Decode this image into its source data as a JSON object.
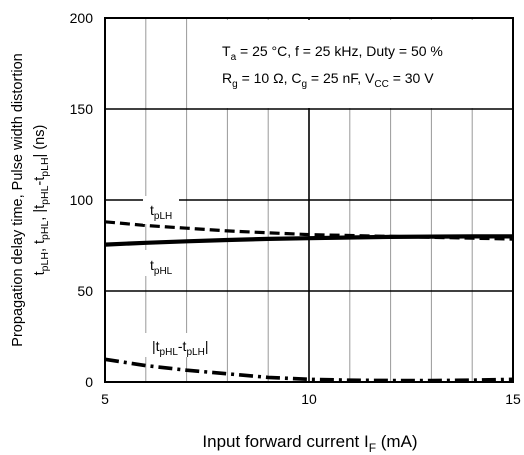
{
  "chart_data": {
    "type": "line",
    "title": "",
    "conditions": {
      "line1": {
        "parts": [
          {
            "t": "T",
            "sub": "a"
          },
          {
            "t": " = 25 °C, f = 25 kHz, Duty = 50 %"
          }
        ]
      },
      "line2": {
        "parts": [
          {
            "t": "R",
            "sub": "g"
          },
          {
            "t": " = 10 Ω, C"
          },
          {
            "t": "",
            "sub": "g"
          },
          {
            "t": " = 25 nF, V"
          },
          {
            "t": "",
            "sub": "CC"
          },
          {
            "t": " = 30 V"
          }
        ]
      }
    },
    "xlabel": {
      "main": "Input forward current  I",
      "sub": "F",
      "unit": "  (mA)"
    },
    "ylabel": {
      "line1": "Propagation delay time, Pulse width distortion",
      "line2_parts": [
        {
          "t": "t",
          "sub": "pLH"
        },
        {
          "t": ", t",
          "sub": "pHL"
        },
        {
          "t": ", |t",
          "sub": "pHL"
        },
        {
          "t": "-t",
          "sub": "pLH"
        },
        {
          "t": "|  (ns)"
        }
      ]
    },
    "xlim": [
      5,
      15
    ],
    "ylim": [
      0,
      200
    ],
    "x_ticks": [
      "5",
      "10",
      "15"
    ],
    "y_ticks": [
      "0",
      "50",
      "100",
      "150",
      "200"
    ],
    "x_minor_grid": [
      6,
      7,
      8,
      9,
      11,
      12,
      13,
      14
    ],
    "x_major_grid": [
      10
    ],
    "y_major_grid": [
      50,
      100,
      150
    ],
    "series": [
      {
        "name": "tpLH",
        "label_parts": [
          {
            "t": "t",
            "sub": "pLH"
          }
        ],
        "style": "dashed",
        "x": [
          5,
          6,
          7,
          8,
          9,
          10,
          11,
          12,
          13,
          14,
          15
        ],
        "y": [
          88,
          86,
          84.5,
          83,
          82,
          81,
          80.5,
          80,
          79.5,
          79,
          78.5
        ]
      },
      {
        "name": "tpHL",
        "label_parts": [
          {
            "t": "t",
            "sub": "pHL"
          }
        ],
        "style": "solid",
        "x": [
          5,
          6,
          7,
          8,
          9,
          10,
          11,
          12,
          13,
          14,
          15
        ],
        "y": [
          75.5,
          76.5,
          77.3,
          78,
          78.6,
          79,
          79.4,
          79.7,
          79.9,
          80,
          80
        ]
      },
      {
        "name": "|tpHL-tpLH|",
        "label_parts": [
          {
            "t": "|t",
            "sub": "pHL"
          },
          {
            "t": "-t",
            "sub": "pLH"
          },
          {
            "t": "|"
          }
        ],
        "style": "dashdot",
        "x": [
          5,
          6,
          7,
          8,
          9,
          10,
          11,
          12,
          13,
          14,
          15
        ],
        "y": [
          12.5,
          9,
          6.5,
          4.5,
          2.5,
          1.5,
          1,
          0.8,
          0.8,
          1,
          1.5
        ]
      }
    ]
  }
}
